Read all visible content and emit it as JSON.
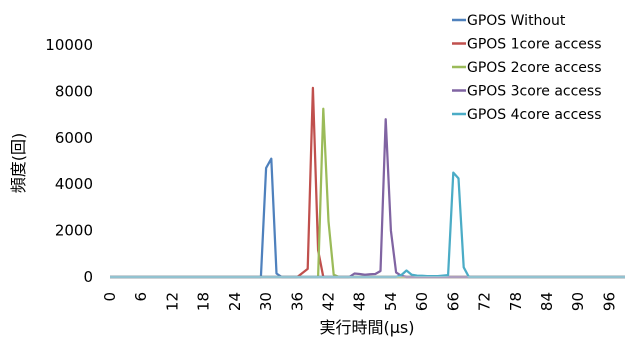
{
  "chart_data": {
    "type": "line",
    "title": "",
    "xlabel": "実行時間(μs)",
    "ylabel": "頻度(回)",
    "xlim": [
      0,
      99
    ],
    "ylim": [
      0,
      10000
    ],
    "x_ticks": [
      0,
      6,
      12,
      18,
      24,
      30,
      36,
      42,
      48,
      54,
      60,
      66,
      72,
      78,
      84,
      90,
      96
    ],
    "y_ticks": [
      0,
      2000,
      4000,
      6000,
      8000,
      10000
    ],
    "grid": false,
    "legend_position": "top-right",
    "series": [
      {
        "name": "GPOS Without",
        "color": "#4F81BD",
        "points": [
          [
            0,
            0
          ],
          [
            29,
            0
          ],
          [
            30,
            4700
          ],
          [
            31,
            5100
          ],
          [
            32,
            150
          ],
          [
            33,
            0
          ],
          [
            99,
            0
          ]
        ]
      },
      {
        "name": "GPOS 1core access",
        "color": "#C0504D",
        "points": [
          [
            0,
            0
          ],
          [
            36,
            0
          ],
          [
            38,
            350
          ],
          [
            39,
            8150
          ],
          [
            40,
            1150
          ],
          [
            41,
            0
          ],
          [
            99,
            0
          ]
        ]
      },
      {
        "name": "GPOS 2core access",
        "color": "#9BBB59",
        "points": [
          [
            0,
            0
          ],
          [
            40,
            0
          ],
          [
            41,
            7250
          ],
          [
            42,
            2400
          ],
          [
            43,
            100
          ],
          [
            44,
            0
          ],
          [
            99,
            0
          ]
        ]
      },
      {
        "name": "GPOS 3core access",
        "color": "#8064A2",
        "points": [
          [
            0,
            0
          ],
          [
            46,
            0
          ],
          [
            47,
            150
          ],
          [
            48,
            130
          ],
          [
            49,
            100
          ],
          [
            50,
            120
          ],
          [
            51,
            130
          ],
          [
            52,
            260
          ],
          [
            53,
            6800
          ],
          [
            54,
            2000
          ],
          [
            55,
            200
          ],
          [
            56,
            50
          ],
          [
            57,
            0
          ],
          [
            99,
            0
          ]
        ]
      },
      {
        "name": "GPOS 4core access",
        "color": "#4BACC6",
        "points": [
          [
            0,
            0
          ],
          [
            55,
            0
          ],
          [
            56,
            80
          ],
          [
            57,
            280
          ],
          [
            58,
            100
          ],
          [
            59,
            60
          ],
          [
            60,
            50
          ],
          [
            61,
            40
          ],
          [
            63,
            40
          ],
          [
            65,
            80
          ],
          [
            66,
            4500
          ],
          [
            67,
            4250
          ],
          [
            68,
            420
          ],
          [
            69,
            0
          ],
          [
            99,
            0
          ]
        ]
      }
    ]
  }
}
